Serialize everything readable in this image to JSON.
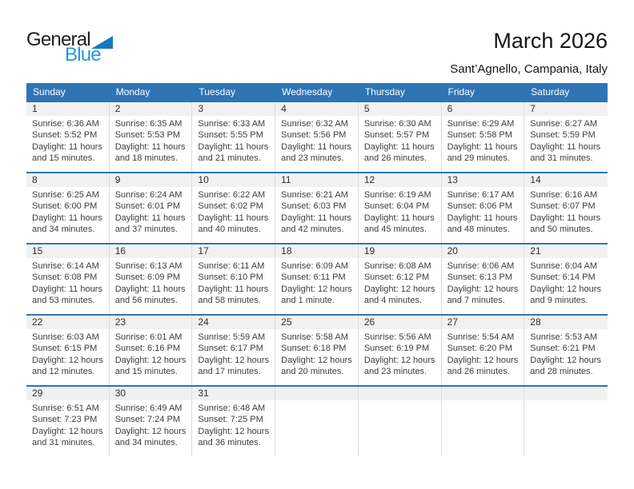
{
  "logo": {
    "word1": "General",
    "word2": "Blue"
  },
  "title": "March 2026",
  "subtitle": "Sant’Agnello, Campania, Italy",
  "colors": {
    "header_bg": "#2E75B6",
    "separator_blue": "#2E75B6",
    "band_bg": "#F1F1F1",
    "weekday_text": "#FFFFFF",
    "logo_text_black": "#1D1D1B",
    "logo_text_blue": "#1E9CD7",
    "logo_triangle_blue": "#1879BD"
  },
  "calendar": {
    "weekdays": [
      "Sunday",
      "Monday",
      "Tuesday",
      "Wednesday",
      "Thursday",
      "Friday",
      "Saturday"
    ],
    "weeks": [
      [
        {
          "day": "1",
          "lines": [
            "Sunrise: 6:36 AM",
            "Sunset: 5:52 PM",
            "Daylight: 11 hours",
            "and 15 minutes."
          ]
        },
        {
          "day": "2",
          "lines": [
            "Sunrise: 6:35 AM",
            "Sunset: 5:53 PM",
            "Daylight: 11 hours",
            "and 18 minutes."
          ]
        },
        {
          "day": "3",
          "lines": [
            "Sunrise: 6:33 AM",
            "Sunset: 5:55 PM",
            "Daylight: 11 hours",
            "and 21 minutes."
          ]
        },
        {
          "day": "4",
          "lines": [
            "Sunrise: 6:32 AM",
            "Sunset: 5:56 PM",
            "Daylight: 11 hours",
            "and 23 minutes."
          ]
        },
        {
          "day": "5",
          "lines": [
            "Sunrise: 6:30 AM",
            "Sunset: 5:57 PM",
            "Daylight: 11 hours",
            "and 26 minutes."
          ]
        },
        {
          "day": "6",
          "lines": [
            "Sunrise: 6:29 AM",
            "Sunset: 5:58 PM",
            "Daylight: 11 hours",
            "and 29 minutes."
          ]
        },
        {
          "day": "7",
          "lines": [
            "Sunrise: 6:27 AM",
            "Sunset: 5:59 PM",
            "Daylight: 11 hours",
            "and 31 minutes."
          ]
        }
      ],
      [
        {
          "day": "8",
          "lines": [
            "Sunrise: 6:25 AM",
            "Sunset: 6:00 PM",
            "Daylight: 11 hours",
            "and 34 minutes."
          ]
        },
        {
          "day": "9",
          "lines": [
            "Sunrise: 6:24 AM",
            "Sunset: 6:01 PM",
            "Daylight: 11 hours",
            "and 37 minutes."
          ]
        },
        {
          "day": "10",
          "lines": [
            "Sunrise: 6:22 AM",
            "Sunset: 6:02 PM",
            "Daylight: 11 hours",
            "and 40 minutes."
          ]
        },
        {
          "day": "11",
          "lines": [
            "Sunrise: 6:21 AM",
            "Sunset: 6:03 PM",
            "Daylight: 11 hours",
            "and 42 minutes."
          ]
        },
        {
          "day": "12",
          "lines": [
            "Sunrise: 6:19 AM",
            "Sunset: 6:04 PM",
            "Daylight: 11 hours",
            "and 45 minutes."
          ]
        },
        {
          "day": "13",
          "lines": [
            "Sunrise: 6:17 AM",
            "Sunset: 6:06 PM",
            "Daylight: 11 hours",
            "and 48 minutes."
          ]
        },
        {
          "day": "14",
          "lines": [
            "Sunrise: 6:16 AM",
            "Sunset: 6:07 PM",
            "Daylight: 11 hours",
            "and 50 minutes."
          ]
        }
      ],
      [
        {
          "day": "15",
          "lines": [
            "Sunrise: 6:14 AM",
            "Sunset: 6:08 PM",
            "Daylight: 11 hours",
            "and 53 minutes."
          ]
        },
        {
          "day": "16",
          "lines": [
            "Sunrise: 6:13 AM",
            "Sunset: 6:09 PM",
            "Daylight: 11 hours",
            "and 56 minutes."
          ]
        },
        {
          "day": "17",
          "lines": [
            "Sunrise: 6:11 AM",
            "Sunset: 6:10 PM",
            "Daylight: 11 hours",
            "and 58 minutes."
          ]
        },
        {
          "day": "18",
          "lines": [
            "Sunrise: 6:09 AM",
            "Sunset: 6:11 PM",
            "Daylight: 12 hours",
            "and 1 minute."
          ]
        },
        {
          "day": "19",
          "lines": [
            "Sunrise: 6:08 AM",
            "Sunset: 6:12 PM",
            "Daylight: 12 hours",
            "and 4 minutes."
          ]
        },
        {
          "day": "20",
          "lines": [
            "Sunrise: 6:06 AM",
            "Sunset: 6:13 PM",
            "Daylight: 12 hours",
            "and 7 minutes."
          ]
        },
        {
          "day": "21",
          "lines": [
            "Sunrise: 6:04 AM",
            "Sunset: 6:14 PM",
            "Daylight: 12 hours",
            "and 9 minutes."
          ]
        }
      ],
      [
        {
          "day": "22",
          "lines": [
            "Sunrise: 6:03 AM",
            "Sunset: 6:15 PM",
            "Daylight: 12 hours",
            "and 12 minutes."
          ]
        },
        {
          "day": "23",
          "lines": [
            "Sunrise: 6:01 AM",
            "Sunset: 6:16 PM",
            "Daylight: 12 hours",
            "and 15 minutes."
          ]
        },
        {
          "day": "24",
          "lines": [
            "Sunrise: 5:59 AM",
            "Sunset: 6:17 PM",
            "Daylight: 12 hours",
            "and 17 minutes."
          ]
        },
        {
          "day": "25",
          "lines": [
            "Sunrise: 5:58 AM",
            "Sunset: 6:18 PM",
            "Daylight: 12 hours",
            "and 20 minutes."
          ]
        },
        {
          "day": "26",
          "lines": [
            "Sunrise: 5:56 AM",
            "Sunset: 6:19 PM",
            "Daylight: 12 hours",
            "and 23 minutes."
          ]
        },
        {
          "day": "27",
          "lines": [
            "Sunrise: 5:54 AM",
            "Sunset: 6:20 PM",
            "Daylight: 12 hours",
            "and 26 minutes."
          ]
        },
        {
          "day": "28",
          "lines": [
            "Sunrise: 5:53 AM",
            "Sunset: 6:21 PM",
            "Daylight: 12 hours",
            "and 28 minutes."
          ]
        }
      ],
      [
        {
          "day": "29",
          "lines": [
            "Sunrise: 6:51 AM",
            "Sunset: 7:23 PM",
            "Daylight: 12 hours",
            "and 31 minutes."
          ]
        },
        {
          "day": "30",
          "lines": [
            "Sunrise: 6:49 AM",
            "Sunset: 7:24 PM",
            "Daylight: 12 hours",
            "and 34 minutes."
          ]
        },
        {
          "day": "31",
          "lines": [
            "Sunrise: 6:48 AM",
            "Sunset: 7:25 PM",
            "Daylight: 12 hours",
            "and 36 minutes."
          ]
        },
        {
          "day": "",
          "lines": []
        },
        {
          "day": "",
          "lines": []
        },
        {
          "day": "",
          "lines": []
        },
        {
          "day": "",
          "lines": []
        }
      ]
    ]
  }
}
